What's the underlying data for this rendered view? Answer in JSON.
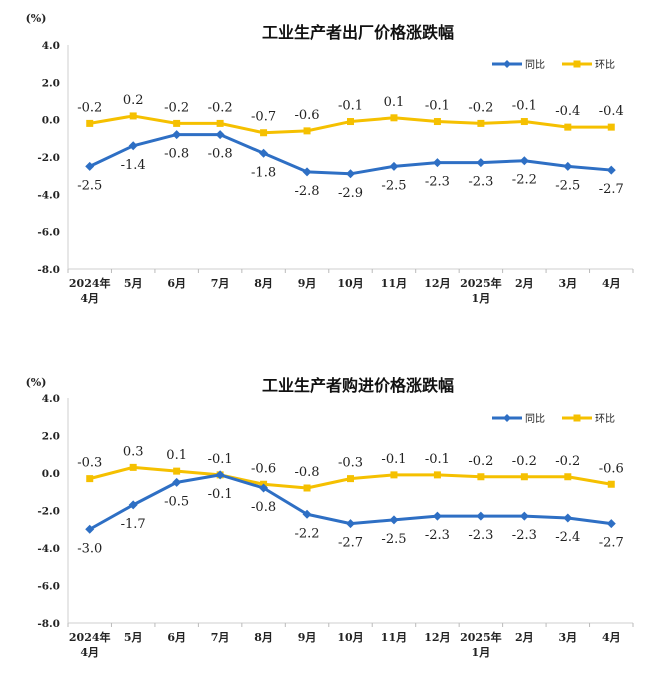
{
  "colors": {
    "yoy": "#2e6fc4",
    "mom": "#f5c000"
  },
  "chart_data": [
    {
      "type": "line",
      "title": "工业生产者出厂价格涨跌幅",
      "unit": "(%)",
      "categories": [
        [
          "2024年",
          "4月"
        ],
        [
          "5月"
        ],
        [
          "6月"
        ],
        [
          "7月"
        ],
        [
          "8月"
        ],
        [
          "9月"
        ],
        [
          "10月"
        ],
        [
          "11月"
        ],
        [
          "12月"
        ],
        [
          "2025年",
          "1月"
        ],
        [
          "2月"
        ],
        [
          "3月"
        ],
        [
          "4月"
        ]
      ],
      "ylim": [
        -8.0,
        4.0
      ],
      "yticks": [
        "4.0",
        "2.0",
        "0.0",
        "-2.0",
        "-4.0",
        "-6.0",
        "-8.0"
      ],
      "legend_position": "top-right",
      "grid": false,
      "series": [
        {
          "name": "同比",
          "color": "#2e6fc4",
          "marker": "diamond",
          "values": [
            -2.5,
            -1.4,
            -0.8,
            -0.8,
            -1.8,
            -2.8,
            -2.9,
            -2.5,
            -2.3,
            -2.3,
            -2.2,
            -2.5,
            -2.7
          ],
          "labels": [
            "-2.5",
            "-1.4",
            "-0.8",
            "-0.8",
            "-1.8",
            "-2.8",
            "-2.9",
            "-2.5",
            "-2.3",
            "-2.3",
            "-2.2",
            "-2.5",
            "-2.7"
          ]
        },
        {
          "name": "环比",
          "color": "#f5c000",
          "marker": "square",
          "values": [
            -0.2,
            0.2,
            -0.2,
            -0.2,
            -0.7,
            -0.6,
            -0.1,
            0.1,
            -0.1,
            -0.2,
            -0.1,
            -0.4,
            -0.4
          ],
          "labels": [
            "-0.2",
            "0.2",
            "-0.2",
            "-0.2",
            "-0.7",
            "-0.6",
            "-0.1",
            "0.1",
            "-0.1",
            "-0.2",
            "-0.1",
            "-0.4",
            "-0.4"
          ]
        }
      ]
    },
    {
      "type": "line",
      "title": "工业生产者购进价格涨跌幅",
      "unit": "(%)",
      "categories": [
        [
          "2024年",
          "4月"
        ],
        [
          "5月"
        ],
        [
          "6月"
        ],
        [
          "7月"
        ],
        [
          "8月"
        ],
        [
          "9月"
        ],
        [
          "10月"
        ],
        [
          "11月"
        ],
        [
          "12月"
        ],
        [
          "2025年",
          "1月"
        ],
        [
          "2月"
        ],
        [
          "3月"
        ],
        [
          "4月"
        ]
      ],
      "ylim": [
        -8.0,
        4.0
      ],
      "yticks": [
        "4.0",
        "2.0",
        "0.0",
        "-2.0",
        "-4.0",
        "-6.0",
        "-8.0"
      ],
      "legend_position": "top-right",
      "grid": false,
      "series": [
        {
          "name": "同比",
          "color": "#2e6fc4",
          "marker": "diamond",
          "values": [
            -3.0,
            -1.7,
            -0.5,
            -0.1,
            -0.8,
            -2.2,
            -2.7,
            -2.5,
            -2.3,
            -2.3,
            -2.3,
            -2.4,
            -2.7
          ],
          "labels": [
            "-3.0",
            "-1.7",
            "-0.5",
            "-0.1",
            "-0.8",
            "-2.2",
            "-2.7",
            "-2.5",
            "-2.3",
            "-2.3",
            "-2.3",
            "-2.4",
            "-2.7"
          ]
        },
        {
          "name": "环比",
          "color": "#f5c000",
          "marker": "square",
          "values": [
            -0.3,
            0.3,
            0.1,
            -0.1,
            -0.6,
            -0.8,
            -0.3,
            -0.1,
            -0.1,
            -0.2,
            -0.2,
            -0.2,
            -0.6
          ],
          "labels": [
            "-0.3",
            "0.3",
            "0.1",
            "-0.1",
            "-0.6",
            "-0.8",
            "-0.3",
            "-0.1",
            "-0.1",
            "-0.2",
            "-0.2",
            "-0.2",
            "-0.6"
          ]
        }
      ]
    }
  ]
}
